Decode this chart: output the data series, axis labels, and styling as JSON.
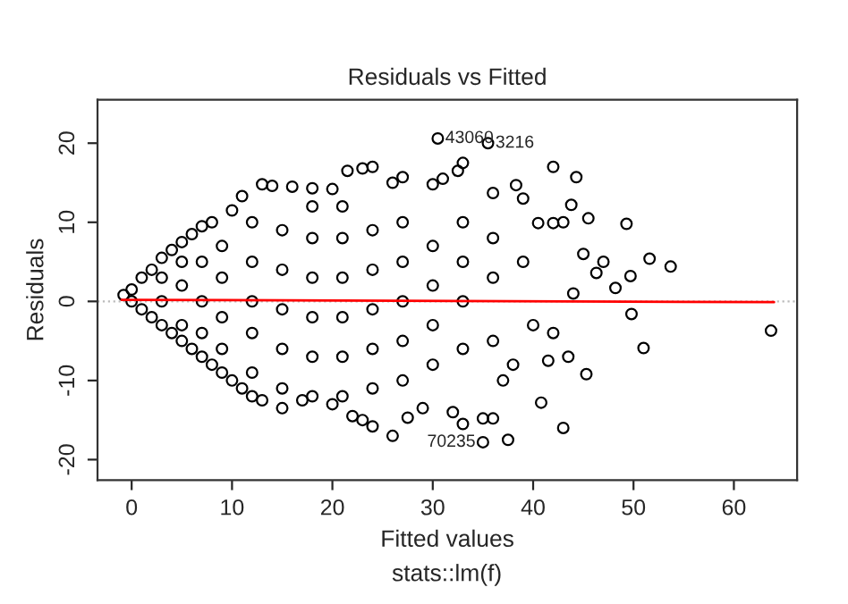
{
  "chart_data": {
    "type": "scatter",
    "title": "Residuals vs Fitted",
    "xlabel": "Fitted values",
    "ylabel": "Residuals",
    "annotations": [
      {
        "text": "43060",
        "x": 30.5,
        "y": 20.6
      },
      {
        "text": "3216",
        "x": 35.5,
        "y": 20
      },
      {
        "text": "70235",
        "x": 35,
        "y": -17.8
      },
      "stats::lm(f)"
    ],
    "xlim": [
      -3.4,
      66.3
    ],
    "ylim": [
      -22.6,
      25.5
    ],
    "xticks": [
      0,
      10,
      20,
      30,
      40,
      50,
      60
    ],
    "yticks": [
      -20,
      -10,
      0,
      10,
      20
    ],
    "grid": false,
    "ref_lines": [
      {
        "axis": "y",
        "value": 0,
        "color": "#bbbbbb",
        "line_style": "dotted"
      }
    ],
    "series": [
      {
        "type": "scatter",
        "marker": "circle",
        "color": "#000000",
        "x": [
          -0.8,
          0,
          1,
          2,
          3,
          4,
          5,
          6,
          7,
          8,
          9,
          10,
          11,
          12,
          13,
          0,
          1,
          2,
          3,
          4,
          5,
          6,
          7,
          8,
          10,
          11,
          13,
          14,
          16,
          18,
          20,
          21.5,
          23,
          24,
          26,
          27,
          30,
          31,
          32.5,
          33,
          3,
          3,
          5,
          5,
          5,
          7,
          7,
          7,
          9,
          9,
          9,
          9,
          12,
          12,
          12,
          12,
          12,
          15,
          15,
          15,
          15,
          15,
          18,
          18,
          18,
          18,
          18,
          18,
          21,
          21,
          21,
          21,
          21,
          21,
          24,
          24,
          24,
          24,
          24,
          27,
          27,
          27,
          27,
          27,
          30,
          30,
          30,
          30,
          33,
          33,
          33,
          33,
          36,
          36,
          36,
          15,
          17,
          20,
          22,
          23,
          24,
          26,
          27.5,
          29,
          32,
          33,
          35,
          36,
          37.5,
          35,
          30.5,
          35.5,
          36,
          38.3,
          39,
          40.5,
          42,
          42,
          43,
          44.3,
          43.8,
          45.5,
          46.3,
          47,
          48.2,
          49.3,
          49.7,
          49.8,
          51.6,
          53.7,
          51,
          63.7,
          45.3,
          43,
          40.8,
          41.5,
          43.5,
          42,
          45,
          44,
          40,
          38,
          39,
          37
        ],
        "values": [
          0.8,
          0,
          -1,
          -2,
          -3,
          -4,
          -5,
          -6,
          -7,
          -8,
          -9,
          -10,
          -11,
          -12,
          -12.5,
          1.5,
          3,
          4,
          5.5,
          6.5,
          7.5,
          8.5,
          9.5,
          10,
          11.5,
          13.3,
          14.8,
          14.6,
          14.5,
          14.3,
          14.2,
          16.5,
          16.8,
          17,
          15,
          15.7,
          14.8,
          15.5,
          16.5,
          17.5,
          0,
          3,
          -3,
          2,
          5,
          -4,
          0,
          5,
          -6,
          -2,
          3,
          7,
          -9,
          -4,
          0,
          5,
          10,
          -11,
          -6,
          -1,
          4,
          9,
          -12,
          -7,
          -2,
          3,
          8,
          12,
          -12,
          -7,
          -2,
          3,
          8,
          12,
          -11,
          -6,
          -1,
          4,
          9,
          -10,
          -5,
          0,
          5,
          10,
          -8,
          -3,
          2,
          7,
          -6,
          0,
          5,
          10,
          -5,
          3,
          8,
          -13.5,
          -12.5,
          -13,
          -14.5,
          -15,
          -15.8,
          -17,
          -14.7,
          -13.5,
          -14,
          -15.5,
          -14.8,
          -14.8,
          -17.5,
          -17.8,
          20.6,
          20,
          13.7,
          14.7,
          13,
          9.9,
          17,
          9.9,
          10,
          15.7,
          12.2,
          10.5,
          3.6,
          5,
          1.7,
          9.8,
          3.2,
          -1.6,
          5.4,
          4.4,
          -5.9,
          -3.7,
          -9.2,
          -16,
          -12.8,
          -7.5,
          -7,
          -4,
          6,
          1,
          -3,
          -8,
          5,
          -10
        ]
      },
      {
        "type": "line",
        "color": "#ff0000",
        "x": [
          -1,
          64
        ],
        "values": [
          0.2,
          -0.1
        ]
      }
    ]
  }
}
